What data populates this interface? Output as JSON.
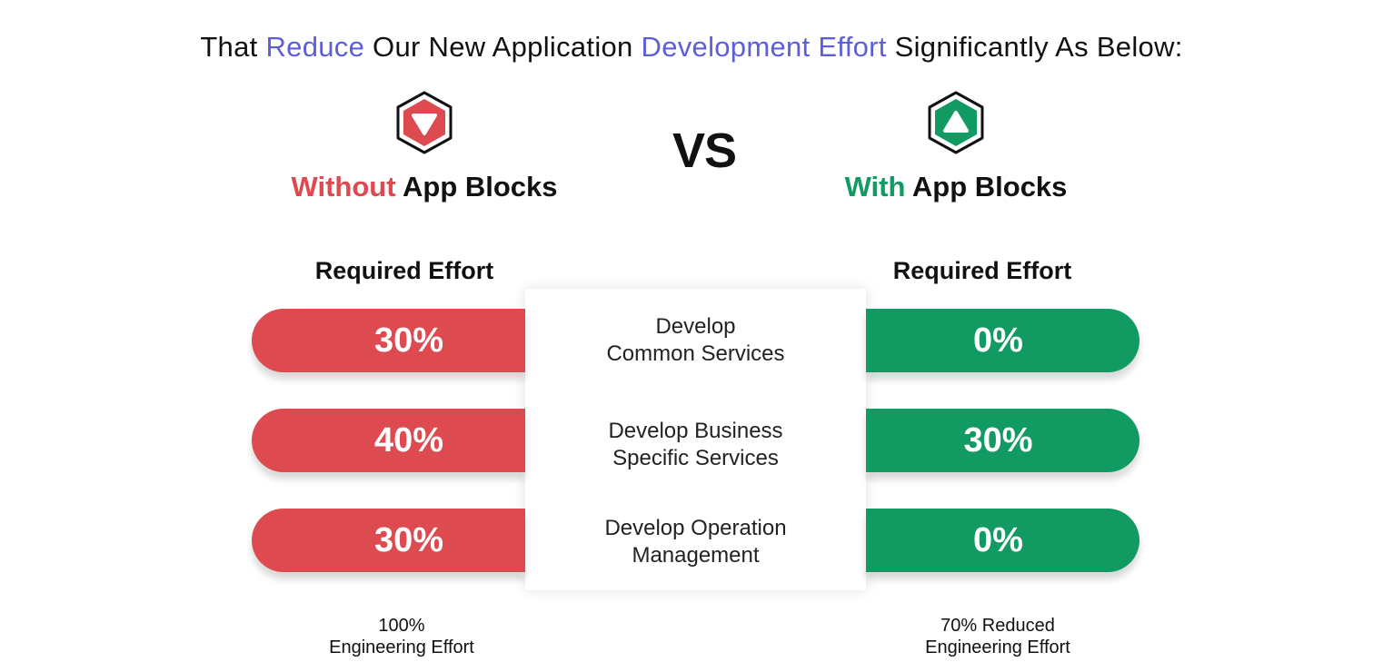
{
  "title": {
    "part1": "That ",
    "accent1": "Reduce",
    "part2": " Our New Application ",
    "accent2": "Development Effort",
    "part3": " Significantly As Below:"
  },
  "colors": {
    "accent": "#5c5fd9",
    "red": "#dd4a4f",
    "green": "#119a62"
  },
  "left": {
    "icon": "hexagon-arrow-down-icon",
    "highlight": "Without",
    "rest": " App Blocks",
    "required_label": "Required Effort",
    "values": [
      "30%",
      "40%",
      "30%"
    ],
    "footer_line1": "100%",
    "footer_line2": "Engineering Effort"
  },
  "vs": "VS",
  "right": {
    "icon": "hexagon-arrow-up-icon",
    "highlight": "With",
    "rest": " App Blocks",
    "required_label": "Required Effort",
    "values": [
      "0%",
      "30%",
      "0%"
    ],
    "footer_line1": "70% Reduced",
    "footer_line2": "Engineering Effort"
  },
  "services": [
    {
      "line1": "Develop",
      "line2": "Common Services"
    },
    {
      "line1": "Develop Business",
      "line2": "Specific Services"
    },
    {
      "line1": "Develop Operation",
      "line2": "Management"
    }
  ]
}
